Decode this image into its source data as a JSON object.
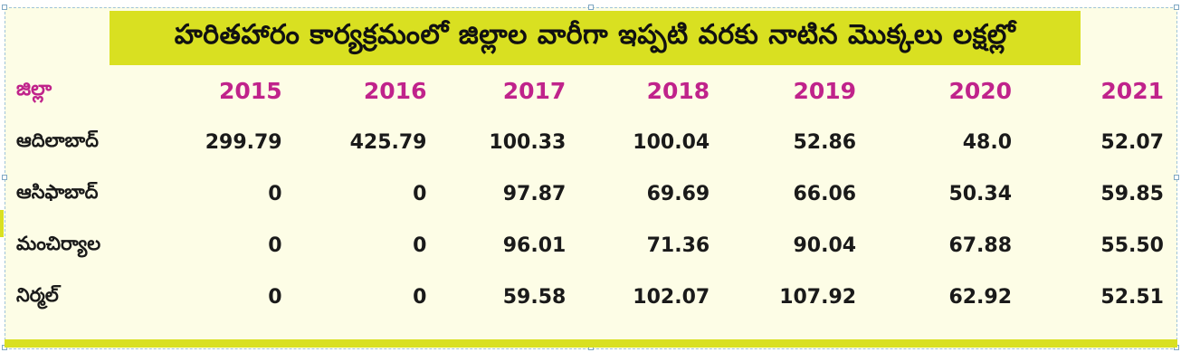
{
  "chart_data": {
    "type": "table",
    "title": "హరితహారం కార్యక్రమంలో జిల్లాల వారీగా ఇప్పటి వరకు నాటిన మొక్కలు లక్షల్లో",
    "columns": [
      "జిల్లా",
      "2015",
      "2016",
      "2017",
      "2018",
      "2019",
      "2020",
      "2021"
    ],
    "rows": [
      [
        "ఆదిలాబాద్",
        "299.79",
        "425.79",
        "100.33",
        "100.04",
        "52.86",
        "48.0",
        "52.07"
      ],
      [
        "ఆసిఫాబాద్",
        "0",
        "0",
        "97.87",
        "69.69",
        "66.06",
        "50.34",
        "59.85"
      ],
      [
        "మంచిర్యాల",
        "0",
        "0",
        "96.01",
        "71.36",
        "90.04",
        "67.88",
        "55.50"
      ],
      [
        "నిర్మల్",
        "0",
        "0",
        "59.58",
        "102.07",
        "107.92",
        "62.92",
        "52.51"
      ]
    ]
  },
  "colors": {
    "title_band": "#d9e021",
    "background": "#fdfde6",
    "header_text": "#c0238b",
    "body_text": "#1a1a1a"
  }
}
